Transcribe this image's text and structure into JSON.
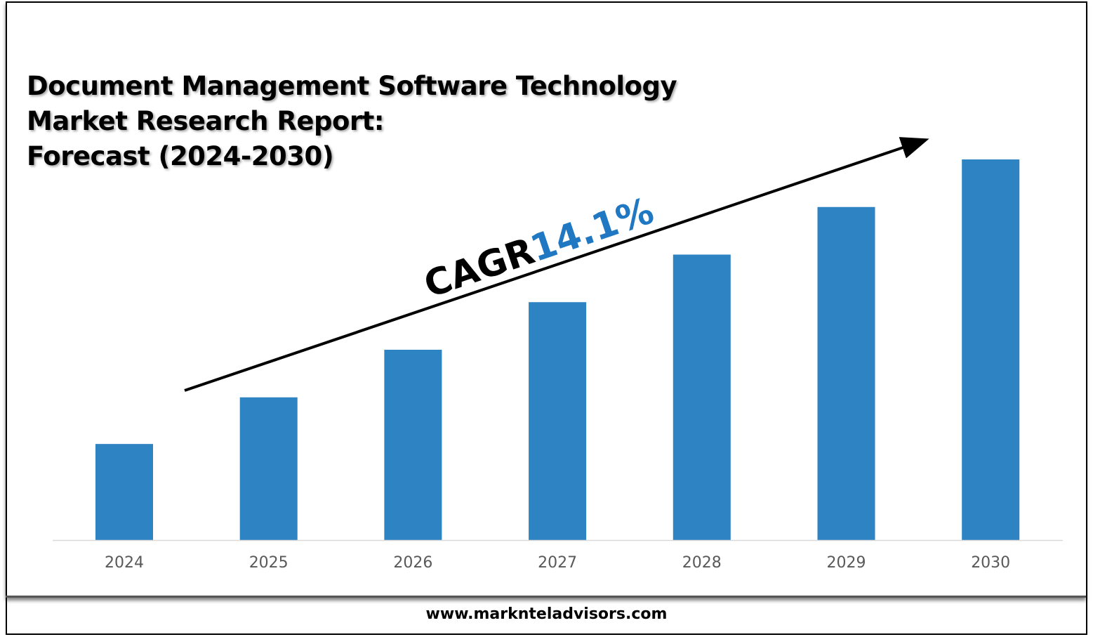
{
  "title_lines": [
    "Document Management Software Technology",
    "Market Research Report:",
    "Forecast (2024-2030)"
  ],
  "footer": "www.marknteladvisors.com",
  "cagr": {
    "label": "CAGR",
    "value": "14.1%"
  },
  "colors": {
    "bar": "#2E83C3",
    "cagr_value": "#1F78C1"
  },
  "chart_data": {
    "type": "bar",
    "title": "Document Management Software Technology Market Research Report: Forecast (2024-2030)",
    "categories": [
      "2024",
      "2025",
      "2026",
      "2027",
      "2028",
      "2029",
      "2030"
    ],
    "values": [
      2,
      3,
      4,
      5,
      6,
      7,
      8
    ],
    "xlabel": "",
    "ylabel": "",
    "ylim": [
      0,
      8
    ],
    "grid": false,
    "legend": "none",
    "annotations": [
      "CAGR 14.1%"
    ]
  }
}
